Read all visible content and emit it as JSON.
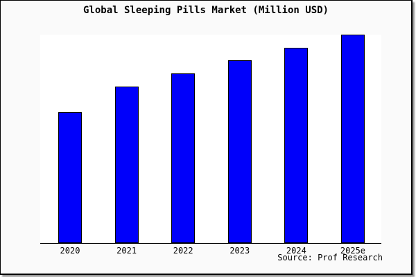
{
  "window": {
    "panel_background": "#fafafa",
    "border_color": "#000000",
    "shadow_color": "#999999"
  },
  "chart_data": {
    "type": "bar",
    "title": "Global Sleeping Pills Market (Million USD)",
    "categories": [
      "2020",
      "2021",
      "2022",
      "2023",
      "2024",
      "2025e"
    ],
    "values": [
      189,
      226,
      245,
      264,
      282,
      301
    ],
    "values_note": "bar heights read in screen pixels; chart displays no numeric y-axis or gridlines, values increase steadily year over year",
    "xlabel": "",
    "ylabel": "",
    "ylim": [
      0,
      310
    ],
    "grid": false,
    "legend": false,
    "bar_color": "#0000fa",
    "bar_border_color": "#000000",
    "plot_background": "#ffffff",
    "axis_color": "#000000"
  },
  "source_note": "Source: Prof Research"
}
